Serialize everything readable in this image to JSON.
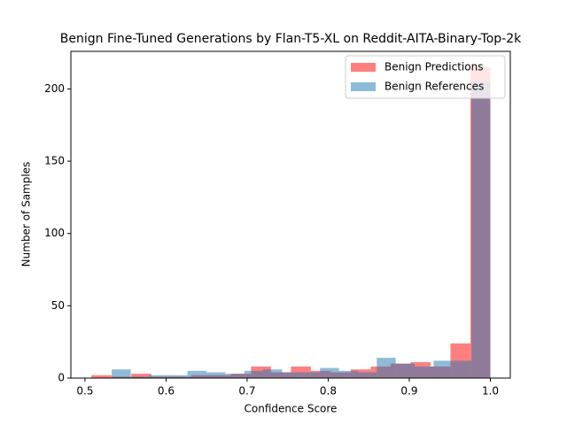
{
  "chart_data": {
    "type": "histogram",
    "title": "Benign Fine-Tuned Generations by Flan-T5-XL on Reddit-AITA-Binary-Top-2k",
    "x_label": "Confidence Score",
    "y_label": "Number of Samples",
    "series": [
      {
        "name": "Benign Predictions",
        "color": "#ff0000",
        "opacity": 0.5,
        "bins": [
          0.508,
          0.5326,
          0.5572,
          0.5818,
          0.6064,
          0.631,
          0.6556,
          0.6802,
          0.7048,
          0.7294,
          0.754,
          0.7786,
          0.8032,
          0.8278,
          0.8524,
          0.877,
          0.9016,
          0.9262,
          0.9508,
          0.9754,
          1.0
        ],
        "values": [
          2,
          1,
          3,
          1,
          1,
          2,
          2,
          3,
          8,
          4,
          8,
          5,
          4,
          6,
          8,
          10,
          11,
          8,
          24,
          215
        ]
      },
      {
        "name": "Benign References",
        "color": "#1f77b4",
        "opacity": 0.5,
        "bins": [
          0.533,
          0.5564,
          0.5797,
          0.6031,
          0.6264,
          0.6498,
          0.6731,
          0.6965,
          0.7198,
          0.7432,
          0.7665,
          0.7899,
          0.8132,
          0.8366,
          0.8599,
          0.8833,
          0.9066,
          0.93,
          0.9533,
          0.9767,
          1.0
        ],
        "values": [
          6,
          1,
          2,
          2,
          5,
          4,
          3,
          5,
          6,
          4,
          4,
          7,
          5,
          4,
          14,
          10,
          8,
          12,
          12,
          205
        ]
      }
    ],
    "xlim": [
      0.4826,
      1.0246
    ],
    "ylim": [
      0,
      226
    ],
    "xticks": [
      0.5,
      0.6,
      0.7,
      0.8,
      0.9,
      {
        "value": 1,
        "label": "1.0"
      }
    ],
    "yticks": [
      0,
      50,
      100,
      150,
      200
    ],
    "legend": "upper right"
  }
}
